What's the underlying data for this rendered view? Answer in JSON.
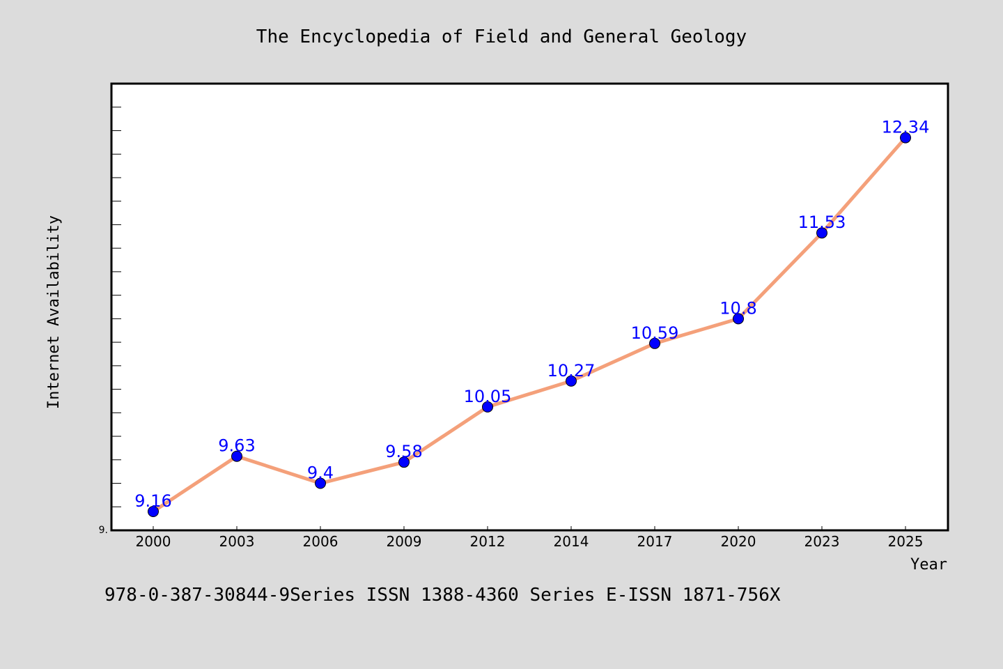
{
  "chart_data": {
    "type": "line",
    "title": "The Encyclopedia of Field and General Geology",
    "xlabel": "Year",
    "ylabel": "Internet Availability",
    "categories": [
      "2000",
      "2003",
      "2006",
      "2009",
      "2012",
      "2014",
      "2017",
      "2020",
      "2023",
      "2025"
    ],
    "series": [
      {
        "values": [
          9.16,
          9.63,
          9.4,
          9.58,
          10.05,
          10.27,
          10.59,
          10.8,
          11.53,
          12.34
        ]
      }
    ],
    "data_labels": [
      "9.16",
      "9.63",
      "9.4",
      "9.58",
      "10.05",
      "10.27",
      "10.59",
      "10.8",
      "11.53",
      "12.34"
    ],
    "y_tick_labels": [
      "9."
    ],
    "ylim": [
      9.0,
      12.8
    ],
    "grid": false,
    "legend": "none",
    "footer": "978-0-387-30844-9Series ISSN 1388-4360 Series E-ISSN 1871-756X",
    "colors": {
      "background": "#dcdcdc",
      "plot_background": "#ffffff",
      "line": "#f4a07a",
      "marker": "#0000ff",
      "data_label": "#0000ff"
    }
  }
}
